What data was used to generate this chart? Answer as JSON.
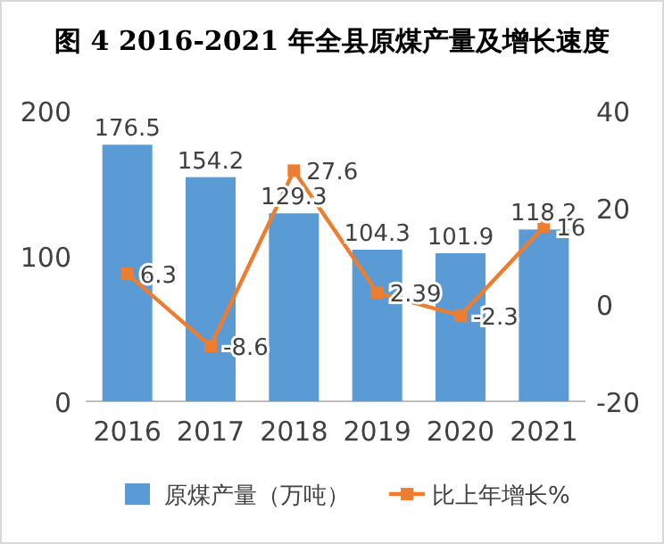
{
  "chart_data": {
    "type": "bar",
    "title": "图 4   2016-2021 年全县原煤产量及增长速度",
    "categories": [
      "2016",
      "2017",
      "2018",
      "2019",
      "2020",
      "2021"
    ],
    "series": [
      {
        "name": "原煤产量（万吨）",
        "color": "#5b9bd5",
        "values": [
          176.5,
          154.2,
          129.3,
          104.3,
          101.9,
          118.2
        ]
      },
      {
        "name": "比上年增长%",
        "type": "line",
        "axis": "y2",
        "color": "#ed7d31",
        "values": [
          6.3,
          -8.6,
          27.6,
          2.39,
          -2.3,
          16
        ]
      }
    ],
    "ylim": [
      0,
      200
    ],
    "yticks": [
      0,
      100,
      200
    ],
    "y2lim": [
      -20,
      40
    ],
    "y2ticks": [
      -20,
      0,
      20,
      40
    ],
    "data_labels": true,
    "legend": "bottom",
    "marker": "square",
    "grid": false
  }
}
